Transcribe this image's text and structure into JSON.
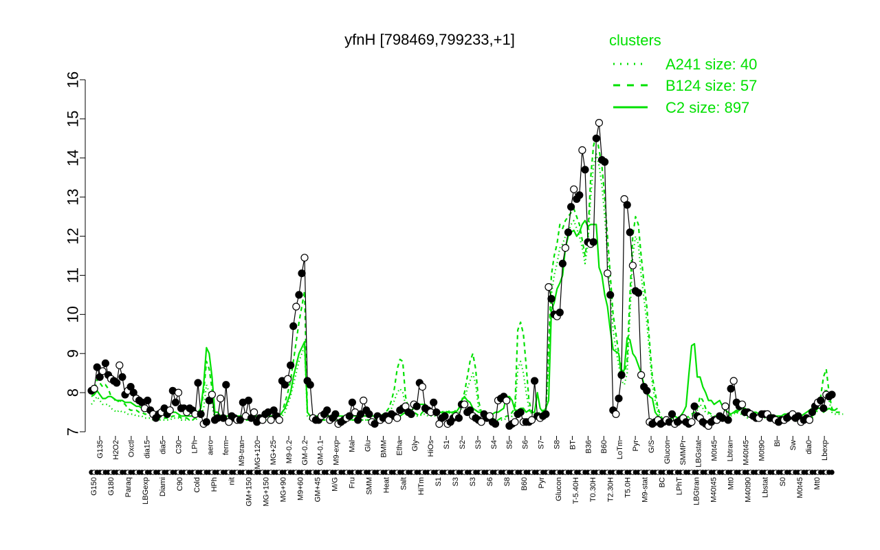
{
  "chart_data": {
    "type": "line",
    "title": "yfnH [798469,799233,+1]",
    "xlabel": "",
    "ylabel": "",
    "ylim": [
      7,
      16
    ],
    "yticks": [
      7,
      8,
      9,
      10,
      11,
      12,
      13,
      14,
      15,
      16
    ],
    "grid": false,
    "legend": {
      "title": "clusters",
      "placement": "top-right",
      "entries": [
        {
          "label": "A241 size: 40",
          "style": "dotted"
        },
        {
          "label": "B124 size: 57",
          "style": "dashed"
        },
        {
          "label": "C2 size: 897",
          "style": "solid"
        }
      ]
    },
    "colors": {
      "cluster_lines": "#00e000",
      "points": "#000000",
      "axis": "#000000"
    },
    "x_tick_labels_upper": [
      "G135",
      "H2O2",
      "Oxctl",
      "dia15",
      "dia5",
      "C30",
      "LPh",
      "aero",
      "ferm",
      "M9-tran",
      "MG+120",
      "MG+25",
      "M9-0.2",
      "GM-0.2",
      "GM-0.1",
      "M9-exp",
      "Mal",
      "Glu",
      "BMM",
      "Etha",
      "Gly",
      "HiOs",
      "S1",
      "S2",
      "S3",
      "S4",
      "S5",
      "S6",
      "S7",
      "S8",
      "BT",
      "B36",
      "B60",
      "LoTm",
      "Pyr",
      "G/S",
      "Glucon",
      "SMMPr",
      "LBGstat",
      "M0t45",
      "Lbtran",
      "M40t45",
      "M0t90",
      "Bl",
      "Sw",
      "dia0",
      "Lbexp"
    ],
    "x_tick_labels_lower": [
      "G150",
      "G180",
      "Paraq",
      "LBGexp",
      "Diami",
      "C90",
      "Cold",
      "HPh",
      "nit",
      "GM+150",
      "MG+150",
      "MG+90",
      "M9+60",
      "GM+45",
      "M/G",
      "Fru",
      "SMM",
      "Heat",
      "Salt",
      "HiTm",
      "S1",
      "S3",
      "S3",
      "S6",
      "S8",
      "B60",
      "Pyr",
      "Glucon",
      "T-5.40H",
      "T0.30H",
      "T2.30H",
      "T5.0H",
      "M9-stat",
      "BC",
      "LPhT",
      "LBGtran",
      "M40t45",
      "Mt0",
      "M40t90",
      "Lbstat",
      "S0",
      "M0t45",
      "Mt0"
    ],
    "series": [
      {
        "name": "",
        "style": "points",
        "values": [
          8.05,
          8.1,
          8.65,
          8.4,
          8.55,
          8.75,
          8.45,
          8.35,
          8.3,
          8.25,
          8.7,
          8.4,
          7.95,
          8.05,
          8.15,
          8.0,
          7.85,
          7.8,
          7.75,
          7.6,
          7.8,
          7.55,
          7.45,
          7.35,
          7.45,
          7.5,
          7.6,
          7.45,
          7.55,
          8.05,
          7.75,
          8.0,
          7.6,
          7.6,
          7.5,
          7.6,
          7.55,
          7.45,
          8.25,
          7.45,
          7.2,
          7.25,
          7.8,
          7.95,
          7.3,
          7.35,
          7.85,
          7.35,
          8.2,
          7.25,
          7.4,
          7.35,
          7.3,
          7.3,
          7.75,
          7.4,
          7.8,
          7.35,
          7.5,
          7.25,
          7.35,
          7.3,
          7.45,
          7.5,
          7.3,
          7.55,
          7.4,
          7.3,
          8.3,
          8.2,
          8.35,
          8.7,
          9.7,
          10.2,
          10.5,
          11.05,
          11.45,
          8.3,
          8.2,
          7.35,
          7.3,
          7.3,
          7.4,
          7.45,
          7.55,
          7.3,
          7.35,
          7.45,
          7.2,
          7.25,
          7.3,
          7.35,
          7.4,
          7.75,
          7.5,
          7.3,
          7.45,
          7.8,
          7.55,
          7.45,
          7.25,
          7.2,
          7.4,
          7.3,
          7.35,
          7.4,
          7.3,
          7.45,
          7.4,
          7.35,
          7.55,
          7.6,
          7.65,
          7.5,
          7.45,
          7.7,
          7.65,
          8.25,
          8.15,
          7.6,
          7.55,
          7.5,
          7.75,
          7.5,
          7.2,
          7.35,
          7.4,
          7.2,
          7.25,
          7.35,
          7.4,
          7.35,
          7.7,
          7.7,
          7.5,
          7.55,
          7.4,
          7.35,
          7.3,
          7.25,
          7.45,
          7.35,
          7.4,
          7.25,
          7.2,
          7.8,
          7.85,
          7.9,
          7.8,
          7.15,
          7.2,
          7.25,
          7.45,
          7.5,
          7.25,
          7.25,
          7.25,
          7.3,
          8.3,
          7.4,
          7.35,
          7.4,
          7.45,
          10.7,
          10.4,
          10.0,
          9.95,
          10.05,
          11.3,
          11.7,
          12.1,
          12.75,
          13.2,
          12.95,
          13.05,
          14.2,
          13.7,
          11.85,
          11.8,
          11.85,
          14.5,
          14.9,
          13.95,
          13.9,
          11.05,
          10.5,
          7.55,
          7.45,
          7.85,
          8.45,
          12.95,
          12.8,
          12.1,
          11.25,
          10.6,
          10.55,
          8.45,
          8.15,
          8.05,
          7.25,
          7.2,
          7.25,
          7.3,
          7.2,
          7.25,
          7.3,
          7.25,
          7.45,
          7.2,
          7.25,
          7.3,
          7.35,
          7.25,
          7.2,
          7.25,
          7.65,
          7.4,
          7.35,
          7.25,
          7.2,
          7.15,
          7.25,
          7.3,
          7.3,
          7.4,
          7.35,
          7.65,
          7.3,
          8.1,
          8.3,
          7.75,
          7.65,
          7.7,
          7.5,
          7.5,
          7.45,
          7.4,
          7.35,
          7.35,
          7.45,
          7.45,
          7.45,
          7.35,
          7.35,
          7.3,
          7.25,
          7.3,
          7.3,
          7.35,
          7.4,
          7.45,
          7.35,
          7.4,
          7.25,
          7.3,
          7.35,
          7.3,
          7.5,
          7.65,
          7.75,
          7.8,
          7.6,
          7.95,
          7.9,
          7.95
        ]
      },
      {
        "name": "C2 size: 897",
        "style": "solid",
        "values": [
          7.9,
          7.95,
          8.05,
          7.95,
          7.85,
          7.85,
          7.9,
          7.9,
          7.85,
          7.8,
          7.8,
          7.8,
          7.75,
          7.75,
          7.75,
          7.7,
          7.65,
          7.65,
          7.6,
          7.6,
          7.55,
          7.5,
          7.5,
          7.5,
          7.5,
          7.5,
          7.5,
          7.5,
          7.5,
          7.5,
          7.5,
          7.45,
          7.4,
          7.4,
          7.4,
          7.4,
          7.4,
          7.4,
          7.5,
          7.6,
          8.2,
          9.15,
          9.0,
          8.4,
          7.5,
          7.5,
          7.4,
          7.4,
          7.4,
          7.4,
          7.4,
          7.4,
          7.4,
          7.4,
          7.4,
          7.4,
          7.4,
          7.4,
          7.4,
          7.4,
          7.4,
          7.4,
          7.4,
          7.4,
          7.4,
          7.4,
          7.4,
          7.4,
          7.5,
          7.6,
          7.8,
          8.0,
          8.4,
          8.7,
          9.0,
          9.15,
          9.3,
          7.5,
          7.4,
          7.4,
          7.4,
          7.4,
          7.4,
          7.4,
          7.4,
          7.4,
          7.4,
          7.4,
          7.4,
          7.4,
          7.4,
          7.4,
          7.4,
          7.4,
          7.4,
          7.4,
          7.4,
          7.4,
          7.4,
          7.4,
          7.4,
          7.4,
          7.4,
          7.4,
          7.4,
          7.4,
          7.4,
          7.4,
          7.4,
          7.4,
          7.4,
          7.45,
          7.5,
          7.5,
          7.55,
          7.6,
          7.6,
          7.7,
          7.7,
          7.7,
          7.6,
          7.55,
          7.5,
          7.5,
          7.5,
          7.5,
          7.5,
          7.5,
          7.5,
          7.5,
          7.5,
          7.6,
          7.8,
          7.9,
          7.8,
          7.75,
          7.6,
          7.55,
          7.5,
          7.5,
          7.45,
          7.45,
          7.45,
          7.45,
          7.5,
          7.5,
          7.55,
          7.6,
          7.9,
          7.9,
          7.8,
          7.55,
          7.55,
          7.6,
          7.6,
          7.5,
          7.55,
          7.5,
          7.5,
          8.0,
          7.6,
          7.5,
          7.6,
          7.8,
          10.1,
          10.3,
          10.65,
          10.8,
          11.0,
          11.7,
          12.0,
          12.1,
          12.15,
          12.0,
          12.1,
          12.3,
          12.4,
          12.25,
          12.3,
          12.3,
          12.3,
          11.2,
          11.0,
          10.5,
          10.2,
          9.6,
          9.1,
          9.05,
          9.0,
          8.4,
          8.6,
          9.4,
          9.35,
          9.0,
          8.9,
          8.7,
          8.5,
          8.2,
          8.0,
          7.9,
          7.85,
          7.5,
          7.4,
          7.35,
          7.3,
          7.25,
          7.3,
          7.35,
          7.4,
          7.35,
          7.4,
          7.5,
          7.65,
          8.45,
          9.2,
          9.25,
          8.4,
          8.4,
          8.15,
          8.0,
          7.8,
          7.8,
          7.7,
          7.75,
          7.8,
          7.65,
          7.55,
          7.5,
          7.45,
          7.5,
          7.5,
          7.55,
          7.6,
          7.6,
          7.55,
          7.5,
          7.5,
          7.5,
          7.45,
          7.45,
          7.45,
          7.45,
          7.45,
          7.4,
          7.4,
          7.4,
          7.4,
          7.45,
          7.45,
          7.4,
          7.4,
          7.35,
          7.4,
          7.4,
          7.45,
          7.5,
          7.55,
          7.6,
          7.6,
          7.6,
          7.6,
          7.5,
          7.55,
          7.6,
          7.55,
          7.55,
          7.6
        ]
      },
      {
        "name": "B124 size: 57",
        "style": "dashed",
        "values": [
          7.95,
          8.0,
          8.35,
          8.25,
          8.15,
          8.2,
          8.1,
          7.9,
          7.85,
          7.75,
          7.8,
          7.75,
          7.7,
          7.6,
          7.55,
          7.55,
          7.55,
          7.5,
          7.5,
          7.45,
          7.45,
          7.45,
          7.4,
          7.35,
          7.35,
          7.35,
          7.35,
          7.35,
          7.35,
          7.4,
          7.4,
          7.4,
          7.35,
          7.35,
          7.35,
          7.3,
          7.3,
          7.35,
          7.45,
          7.6,
          8.0,
          8.8,
          8.6,
          8.1,
          7.4,
          7.35,
          7.3,
          7.3,
          7.35,
          7.3,
          7.3,
          7.3,
          7.3,
          7.3,
          7.3,
          7.3,
          7.3,
          7.3,
          7.3,
          7.3,
          7.3,
          7.3,
          7.3,
          7.3,
          7.3,
          7.3,
          7.3,
          7.35,
          7.5,
          7.75,
          8.0,
          8.3,
          8.8,
          9.3,
          9.8,
          10.2,
          10.6,
          7.5,
          7.4,
          7.35,
          7.3,
          7.3,
          7.3,
          7.3,
          7.3,
          7.3,
          7.3,
          7.3,
          7.3,
          7.3,
          7.3,
          7.3,
          7.3,
          7.3,
          7.3,
          7.3,
          7.3,
          7.3,
          7.3,
          7.3,
          7.3,
          7.3,
          7.35,
          7.4,
          7.45,
          7.5,
          7.6,
          7.8,
          8.1,
          8.6,
          8.85,
          8.8,
          7.9,
          7.6,
          7.5,
          7.5,
          7.45,
          7.4,
          7.5,
          7.55,
          7.5,
          7.45,
          7.45,
          7.45,
          7.5,
          7.5,
          7.55,
          7.5,
          7.55,
          7.5,
          7.55,
          7.6,
          7.8,
          8.0,
          8.4,
          8.8,
          9.0,
          8.6,
          7.8,
          7.5,
          7.45,
          7.4,
          7.35,
          7.35,
          7.3,
          7.3,
          7.35,
          7.35,
          7.4,
          7.4,
          7.5,
          7.6,
          9.6,
          9.8,
          9.5,
          8.7,
          7.8,
          7.5,
          7.5,
          7.45,
          7.5,
          7.55,
          7.5,
          9.2,
          11.0,
          11.5,
          11.8,
          12.3,
          12.2,
          12.4,
          12.5,
          12.6,
          12.7,
          12.5,
          12.3,
          11.9,
          11.5,
          12.0,
          13.5,
          14.3,
          14.6,
          14.2,
          13.8,
          13.0,
          12.0,
          11.0,
          10.0,
          9.5,
          9.0,
          8.6,
          8.5,
          8.8,
          10.5,
          12.0,
          12.5,
          12.3,
          11.5,
          10.8,
          10.2,
          9.3,
          8.4,
          8.0,
          7.6,
          7.4,
          7.3,
          7.25,
          7.2,
          7.25,
          7.3,
          7.35,
          7.3,
          7.3,
          7.35,
          7.4,
          7.45,
          7.5,
          7.6,
          7.9,
          7.8,
          7.6,
          7.5,
          7.45,
          7.4,
          7.4,
          7.35,
          7.35,
          7.4,
          7.4,
          7.45,
          7.5,
          7.55,
          7.5,
          7.5,
          7.45,
          7.4,
          7.4,
          7.45,
          7.4,
          7.4,
          7.4,
          7.4,
          7.45,
          7.45,
          7.4,
          7.4,
          7.35,
          7.35,
          7.35,
          7.35,
          7.35,
          7.35,
          7.35,
          7.3,
          7.35,
          7.3,
          7.35,
          7.35,
          7.4,
          7.5,
          7.6,
          7.9,
          8.4,
          8.6,
          8.0,
          7.6,
          7.5,
          7.5,
          7.5,
          7.5
        ]
      },
      {
        "name": "A241 size: 40",
        "style": "dotted",
        "values": [
          7.7,
          7.8,
          7.9,
          7.8,
          7.7,
          7.7,
          7.7,
          7.6,
          7.55,
          7.5,
          7.55,
          7.5,
          7.5,
          7.45,
          7.45,
          7.45,
          7.4,
          7.4,
          7.4,
          7.35,
          7.35,
          7.35,
          7.3,
          7.3,
          7.3,
          7.3,
          7.3,
          7.3,
          7.3,
          7.35,
          7.35,
          7.35,
          7.3,
          7.3,
          7.3,
          7.3,
          7.3,
          7.3,
          7.35,
          7.4,
          7.6,
          8.2,
          8.0,
          7.7,
          7.3,
          7.3,
          7.3,
          7.3,
          7.3,
          7.3,
          7.3,
          7.3,
          7.3,
          7.3,
          7.3,
          7.3,
          7.3,
          7.3,
          7.3,
          7.3,
          7.3,
          7.3,
          7.3,
          7.3,
          7.3,
          7.3,
          7.3,
          7.3,
          7.4,
          7.5,
          7.7,
          7.9,
          8.2,
          8.5,
          8.8,
          9.0,
          9.2,
          7.4,
          7.3,
          7.3,
          7.3,
          7.3,
          7.3,
          7.3,
          7.3,
          7.3,
          7.3,
          7.3,
          7.3,
          7.3,
          7.3,
          7.3,
          7.3,
          7.3,
          7.3,
          7.3,
          7.3,
          7.3,
          7.3,
          7.3,
          7.3,
          7.3,
          7.3,
          7.35,
          7.4,
          7.45,
          7.5,
          7.6,
          7.8,
          8.0,
          8.1,
          8.0,
          7.7,
          7.5,
          7.45,
          7.45,
          7.4,
          7.4,
          7.45,
          7.45,
          7.4,
          7.4,
          7.4,
          7.4,
          7.45,
          7.45,
          7.45,
          7.45,
          7.5,
          7.45,
          7.5,
          7.5,
          7.6,
          7.8,
          8.1,
          8.3,
          8.5,
          8.2,
          7.6,
          7.45,
          7.4,
          7.35,
          7.3,
          7.3,
          7.3,
          7.3,
          7.3,
          7.3,
          7.35,
          7.35,
          7.4,
          7.5,
          8.6,
          8.8,
          8.5,
          8.0,
          7.6,
          7.45,
          7.45,
          7.4,
          7.45,
          7.5,
          7.45,
          8.8,
          10.5,
          11.0,
          11.3,
          11.7,
          11.8,
          12.0,
          12.1,
          12.3,
          12.4,
          12.2,
          12.0,
          11.7,
          11.3,
          11.8,
          13.0,
          13.8,
          14.1,
          13.8,
          13.3,
          12.5,
          11.5,
          10.5,
          9.6,
          9.1,
          8.7,
          8.3,
          8.2,
          8.5,
          10.0,
          11.5,
          12.0,
          11.8,
          11.0,
          10.4,
          9.8,
          9.0,
          8.2,
          7.8,
          7.5,
          7.35,
          7.25,
          7.2,
          7.2,
          7.2,
          7.25,
          7.3,
          7.25,
          7.25,
          7.3,
          7.35,
          7.4,
          7.45,
          7.55,
          7.7,
          7.6,
          7.5,
          7.45,
          7.4,
          7.35,
          7.35,
          7.3,
          7.3,
          7.35,
          7.35,
          7.4,
          7.45,
          7.5,
          7.45,
          7.45,
          7.4,
          7.35,
          7.35,
          7.4,
          7.35,
          7.35,
          7.35,
          7.35,
          7.4,
          7.4,
          7.35,
          7.35,
          7.3,
          7.3,
          7.3,
          7.3,
          7.3,
          7.3,
          7.3,
          7.25,
          7.3,
          7.25,
          7.3,
          7.3,
          7.35,
          7.45,
          7.55,
          7.8,
          8.0,
          8.1,
          7.8,
          7.5,
          7.45,
          7.45,
          7.45,
          7.45
        ]
      }
    ]
  }
}
